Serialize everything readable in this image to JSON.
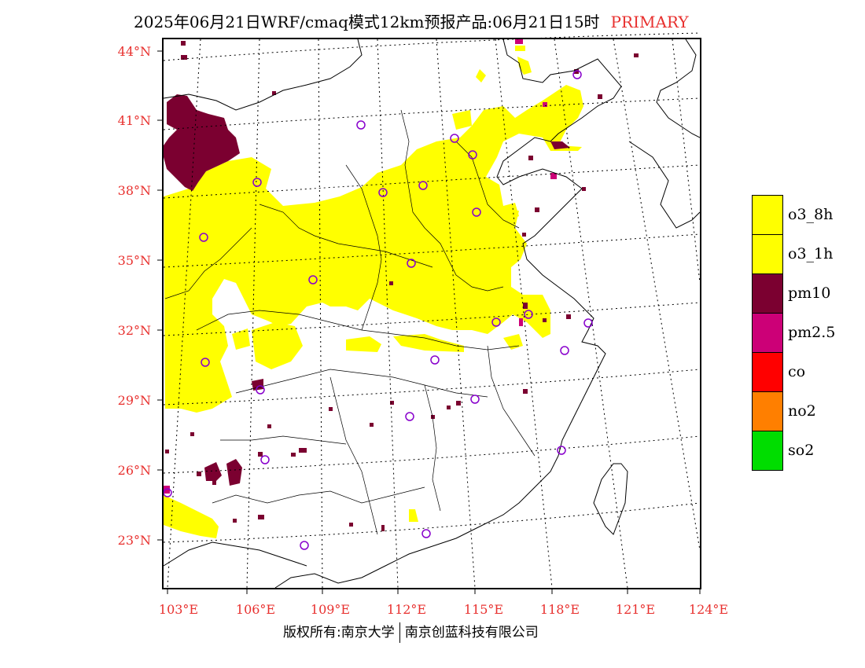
{
  "header": {
    "title": "2025年06月21日WRF/cmaq模式12km预报产品:06月21日15时",
    "tag": "PRIMARY"
  },
  "axes": {
    "lat_labels": [
      "44°N",
      "41°N",
      "38°N",
      "35°N",
      "32°N",
      "29°N",
      "26°N",
      "23°N"
    ],
    "lon_labels": [
      "103°E",
      "106°E",
      "109°E",
      "112°E",
      "115°E",
      "118°E",
      "121°E",
      "124°E"
    ],
    "lat_values": [
      44,
      41,
      38,
      35,
      32,
      29,
      26,
      23
    ],
    "lon_values": [
      103,
      106,
      109,
      112,
      115,
      118,
      121,
      124
    ],
    "grid": "dotted",
    "label_color": "#e8312f"
  },
  "legend": [
    {
      "label": "o3_8h",
      "color": "#ffff00"
    },
    {
      "label": "o3_1h",
      "color": "#ffff00"
    },
    {
      "label": "pm10",
      "color": "#7b0030"
    },
    {
      "label": "pm2.5",
      "color": "#cc0077"
    },
    {
      "label": "co",
      "color": "#ff0000"
    },
    {
      "label": "no2",
      "color": "#ff7f00"
    },
    {
      "label": "so2",
      "color": "#00dd00"
    }
  ],
  "stations": {
    "marker": "circle",
    "color": "#8800cc",
    "count": 29
  },
  "footer": {
    "left": "版权所有:南京大学",
    "right": "南京创蓝科技有限公司"
  }
}
